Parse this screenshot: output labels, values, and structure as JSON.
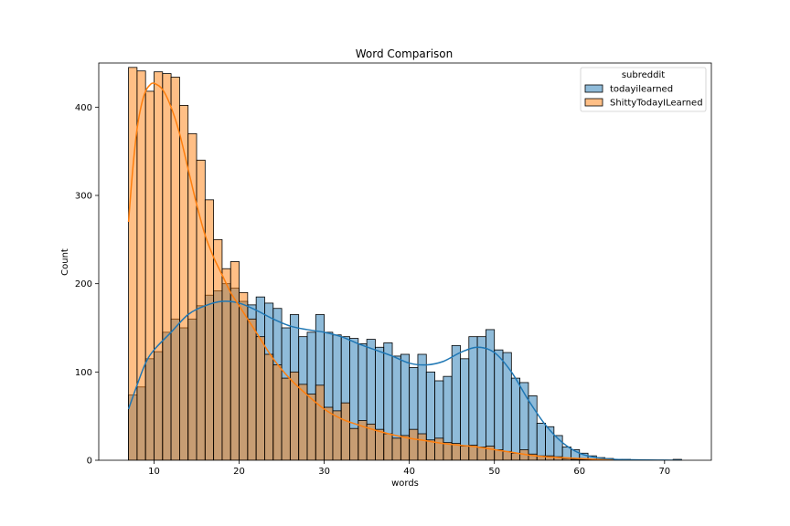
{
  "chart_data": {
    "type": "bar",
    "title": "Word Comparison",
    "xlabel": "words",
    "ylabel": "Count",
    "xlim": [
      3.5,
      75.5
    ],
    "ylim": [
      0,
      450
    ],
    "xticks": [
      10,
      20,
      30,
      40,
      50,
      60,
      70
    ],
    "yticks": [
      0,
      100,
      200,
      300,
      400
    ],
    "legend": {
      "title": "subreddit",
      "position": "top-right",
      "entries": [
        "todayilearned",
        "ShittyTodayILearned"
      ]
    },
    "bins": {
      "start": 7,
      "width": 1,
      "count": 65
    },
    "series": [
      {
        "name": "todayilearned",
        "color": "#1f77b4",
        "values": [
          74,
          83,
          115,
          123,
          145,
          160,
          150,
          160,
          175,
          187,
          192,
          200,
          195,
          180,
          176,
          185,
          178,
          172,
          150,
          165,
          140,
          145,
          165,
          145,
          142,
          140,
          138,
          132,
          137,
          128,
          133,
          118,
          120,
          105,
          120,
          100,
          90,
          95,
          130,
          115,
          140,
          140,
          148,
          125,
          122,
          93,
          88,
          73,
          42,
          38,
          28,
          15,
          12,
          8,
          5,
          3,
          2,
          1,
          1,
          0,
          0,
          0,
          0,
          0,
          1
        ],
        "kde_x": [
          7,
          8,
          9,
          10,
          12,
          14,
          16,
          18,
          20,
          22,
          24,
          26,
          28,
          30,
          32,
          34,
          36,
          38,
          40,
          42,
          44,
          46,
          48,
          50,
          52,
          54,
          56,
          58,
          60,
          62,
          64,
          66,
          68,
          70,
          72
        ],
        "kde_y": [
          58,
          85,
          110,
          125,
          145,
          165,
          175,
          180,
          178,
          170,
          160,
          152,
          148,
          145,
          140,
          132,
          125,
          118,
          110,
          108,
          112,
          122,
          128,
          122,
          100,
          68,
          40,
          20,
          8,
          3,
          1,
          0.5,
          0.2,
          0.1,
          0
        ]
      },
      {
        "name": "ShittyTodayILearned",
        "color": "#ff7f0e",
        "values": [
          445,
          441,
          418,
          440,
          438,
          434,
          402,
          370,
          340,
          295,
          250,
          217,
          225,
          190,
          160,
          140,
          120,
          108,
          93,
          100,
          86,
          75,
          85,
          60,
          56,
          65,
          36,
          45,
          41,
          35,
          30,
          25,
          28,
          35,
          30,
          23,
          25,
          20,
          19,
          16,
          17,
          15,
          16,
          12,
          10,
          8,
          12,
          7,
          5,
          5,
          4,
          2,
          1,
          1,
          1,
          0,
          0,
          0,
          0,
          0,
          0,
          0,
          0,
          0,
          0
        ],
        "kde_x": [
          7,
          7.5,
          8,
          8.5,
          9,
          9.5,
          10,
          11,
          12,
          13,
          14,
          15,
          16,
          17,
          18,
          19,
          20,
          22,
          24,
          26,
          28,
          30,
          32,
          34,
          36,
          38,
          40,
          42,
          44,
          46,
          48,
          50,
          52,
          54,
          56,
          58,
          60,
          62,
          64
        ],
        "kde_y": [
          270,
          330,
          375,
          402,
          418,
          425,
          427,
          420,
          400,
          370,
          330,
          290,
          255,
          230,
          210,
          190,
          175,
          145,
          115,
          92,
          74,
          58,
          47,
          40,
          34,
          29,
          25,
          22,
          19,
          17,
          15,
          12,
          9,
          6,
          4,
          3,
          2,
          1,
          0
        ]
      }
    ]
  }
}
